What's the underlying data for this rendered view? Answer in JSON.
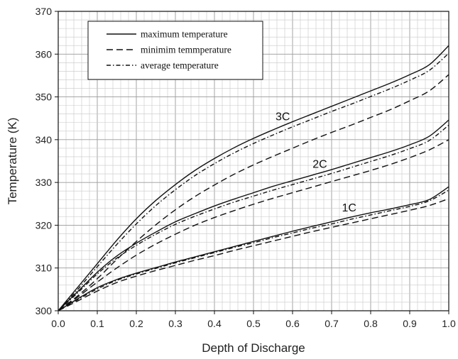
{
  "chart_data": {
    "type": "line",
    "title": "",
    "xlabel": "Depth of Discharge",
    "ylabel": "Temperature (K)",
    "xlim": [
      0.0,
      1.0
    ],
    "ylim": [
      300,
      370
    ],
    "grid": true,
    "legend_placement": "top-left",
    "x_ticks": [
      "0.0",
      "0.1",
      "0.2",
      "0.3",
      "0.4",
      "0.5",
      "0.6",
      "0.7",
      "0.8",
      "0.9",
      "1.0"
    ],
    "y_ticks": [
      "300",
      "310",
      "320",
      "330",
      "340",
      "350",
      "360",
      "370"
    ],
    "legend": [
      {
        "label": "maximum temperature",
        "style": "solid"
      },
      {
        "label": "minimim temmperature",
        "style": "dashed"
      },
      {
        "label": "average temperature",
        "style": "dashdot"
      }
    ],
    "x": [
      0.0,
      0.05,
      0.1,
      0.15,
      0.2,
      0.25,
      0.3,
      0.35,
      0.4,
      0.45,
      0.5,
      0.55,
      0.6,
      0.65,
      0.7,
      0.75,
      0.8,
      0.85,
      0.9,
      0.95,
      1.0
    ],
    "series": [
      {
        "group": "3C",
        "kind": "maximum",
        "style": "solid",
        "values": [
          300,
          305.5,
          311.0,
          316.5,
          321.5,
          325.8,
          329.5,
          332.8,
          335.6,
          338.1,
          340.3,
          342.3,
          344.2,
          346.0,
          347.8,
          349.6,
          351.4,
          353.2,
          355.2,
          357.5,
          362.0
        ]
      },
      {
        "group": "3C",
        "kind": "average",
        "style": "dashdot",
        "values": [
          300,
          305.0,
          310.3,
          315.5,
          320.3,
          324.6,
          328.3,
          331.6,
          334.4,
          336.9,
          339.1,
          341.1,
          343.0,
          344.8,
          346.6,
          348.3,
          350.1,
          351.9,
          353.9,
          356.2,
          360.2
        ]
      },
      {
        "group": "3C",
        "kind": "minimum",
        "style": "dashed",
        "values": [
          300,
          303.5,
          307.5,
          312.0,
          316.2,
          320.1,
          323.6,
          326.7,
          329.4,
          331.9,
          334.1,
          336.1,
          338.0,
          339.9,
          341.7,
          343.4,
          345.2,
          347.0,
          349.1,
          351.4,
          355.2
        ]
      },
      {
        "group": "2C",
        "kind": "maximum",
        "style": "solid",
        "values": [
          300,
          304.5,
          309.0,
          312.8,
          315.8,
          318.4,
          320.8,
          322.7,
          324.5,
          326.1,
          327.6,
          329.1,
          330.4,
          331.7,
          333.0,
          334.4,
          335.8,
          337.2,
          338.8,
          340.8,
          344.6
        ]
      },
      {
        "group": "2C",
        "kind": "average",
        "style": "dashdot",
        "values": [
          300,
          304.2,
          308.6,
          312.3,
          315.3,
          317.9,
          320.2,
          322.1,
          323.8,
          325.4,
          326.8,
          328.2,
          329.5,
          330.8,
          332.1,
          333.5,
          334.9,
          336.3,
          337.9,
          339.8,
          343.4
        ]
      },
      {
        "group": "2C",
        "kind": "minimum",
        "style": "dashed",
        "values": [
          300,
          303.2,
          306.7,
          310.0,
          313.0,
          315.6,
          317.9,
          320.0,
          321.8,
          323.4,
          324.9,
          326.3,
          327.6,
          328.9,
          330.2,
          331.5,
          332.8,
          334.2,
          335.8,
          337.6,
          340.0
        ]
      },
      {
        "group": "1C",
        "kind": "maximum",
        "style": "solid",
        "values": [
          300,
          302.8,
          305.4,
          307.3,
          308.8,
          310.1,
          311.4,
          312.6,
          313.8,
          315.0,
          316.2,
          317.4,
          318.6,
          319.7,
          320.8,
          321.9,
          322.9,
          323.8,
          324.8,
          326.0,
          329.0
        ]
      },
      {
        "group": "1C",
        "kind": "average",
        "style": "dashdot",
        "values": [
          300,
          302.6,
          305.1,
          307.1,
          308.6,
          309.9,
          311.2,
          312.4,
          313.6,
          314.8,
          315.9,
          317.1,
          318.2,
          319.3,
          320.3,
          321.4,
          322.4,
          323.4,
          324.4,
          325.7,
          328.2
        ]
      },
      {
        "group": "1C",
        "kind": "minimum",
        "style": "dashed",
        "values": [
          300,
          302.3,
          304.6,
          306.6,
          308.1,
          309.4,
          310.6,
          311.8,
          312.9,
          314.1,
          315.2,
          316.3,
          317.4,
          318.5,
          319.5,
          320.5,
          321.5,
          322.5,
          323.5,
          324.6,
          326.2
        ]
      }
    ],
    "annotations": [
      {
        "text": "3C",
        "x": 0.575,
        "y": 344.5
      },
      {
        "text": "2C",
        "x": 0.67,
        "y": 333.4
      },
      {
        "text": "1C",
        "x": 0.745,
        "y": 323.2
      }
    ]
  }
}
